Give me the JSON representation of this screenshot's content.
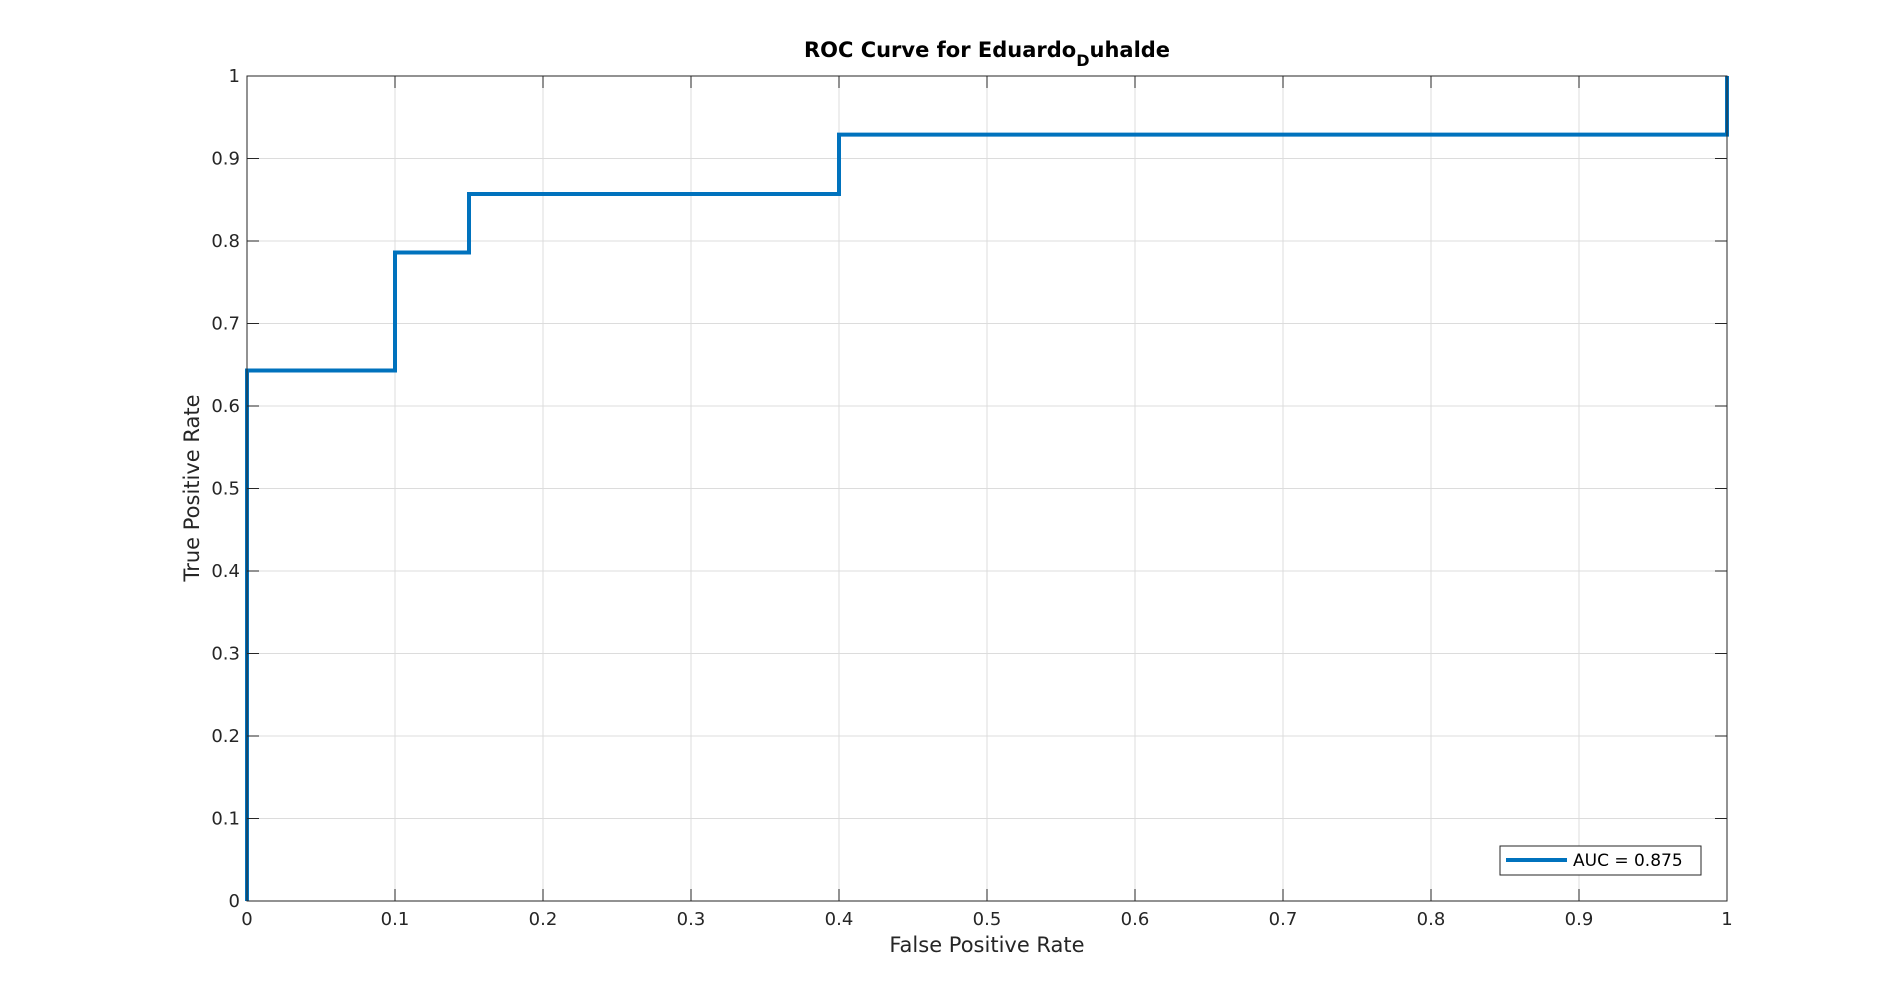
{
  "chart_data": {
    "type": "line",
    "title": {
      "main": "ROC Curve for Eduardo",
      "subscript": "D",
      "rest": "uhalde"
    },
    "xlabel": "False Positive Rate",
    "ylabel": "True Positive Rate",
    "xlim": [
      0,
      1
    ],
    "ylim": [
      0,
      1
    ],
    "xticks": [
      "0",
      "0.1",
      "0.2",
      "0.3",
      "0.4",
      "0.5",
      "0.6",
      "0.7",
      "0.8",
      "0.9",
      "1"
    ],
    "yticks": [
      "0",
      "0.1",
      "0.2",
      "0.3",
      "0.4",
      "0.5",
      "0.6",
      "0.7",
      "0.8",
      "0.9",
      "1"
    ],
    "grid": true,
    "legend_position": "bottom-right",
    "series": [
      {
        "name": "AUC = 0.875",
        "color": "#0072BD",
        "x": [
          0,
          0,
          0.1,
          0.1,
          0.15,
          0.15,
          0.4,
          0.4,
          1,
          1
        ],
        "y": [
          0,
          0.643,
          0.643,
          0.786,
          0.786,
          0.857,
          0.857,
          0.929,
          0.929,
          1
        ]
      }
    ]
  }
}
